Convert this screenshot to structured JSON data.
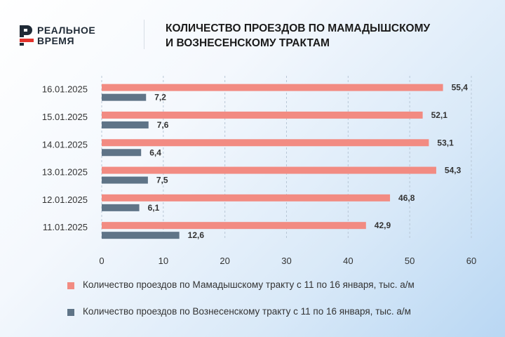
{
  "brand": {
    "logo_text_1": "РЕАЛЬНОЕ",
    "logo_text_2": "ВРЕМЯ",
    "logo_red": "#e2322b",
    "logo_dark": "#1f2a36"
  },
  "chart_data": {
    "type": "bar",
    "orientation": "horizontal",
    "title_line_1": "КОЛИЧЕСТВО ПРОЕЗДОВ ПО МАМАДЫШСКОМУ",
    "title_line_2": "И ВОЗНЕСЕНСКОМУ ТРАКТАМ",
    "categories": [
      "16.01.2025",
      "15.01.2025",
      "14.01.2025",
      "13.01.2025",
      "12.01.2025",
      "11.01.2025"
    ],
    "series": [
      {
        "name": "Количество проездов по Мамадышскому тракту с 11 по 16 января, тыс. а/м",
        "color": "#f28b82",
        "values": [
          55.4,
          52.1,
          53.1,
          54.3,
          46.8,
          42.9
        ],
        "labels": [
          "55,4",
          "52,1",
          "53,1",
          "54,3",
          "46,8",
          "42,9"
        ]
      },
      {
        "name": "Количество проездов по Вознесенскому тракту с 11 по 16 января, тыс. а/м",
        "color": "#5f7487",
        "values": [
          7.2,
          7.6,
          6.4,
          7.5,
          6.1,
          12.6
        ],
        "labels": [
          "7,2",
          "7,6",
          "6,4",
          "7,5",
          "6,1",
          "12,6"
        ]
      }
    ],
    "xlim": [
      0,
      60
    ],
    "xticks": [
      0,
      10,
      20,
      30,
      40,
      50,
      60
    ],
    "grid": true,
    "legend_position": "bottom"
  }
}
